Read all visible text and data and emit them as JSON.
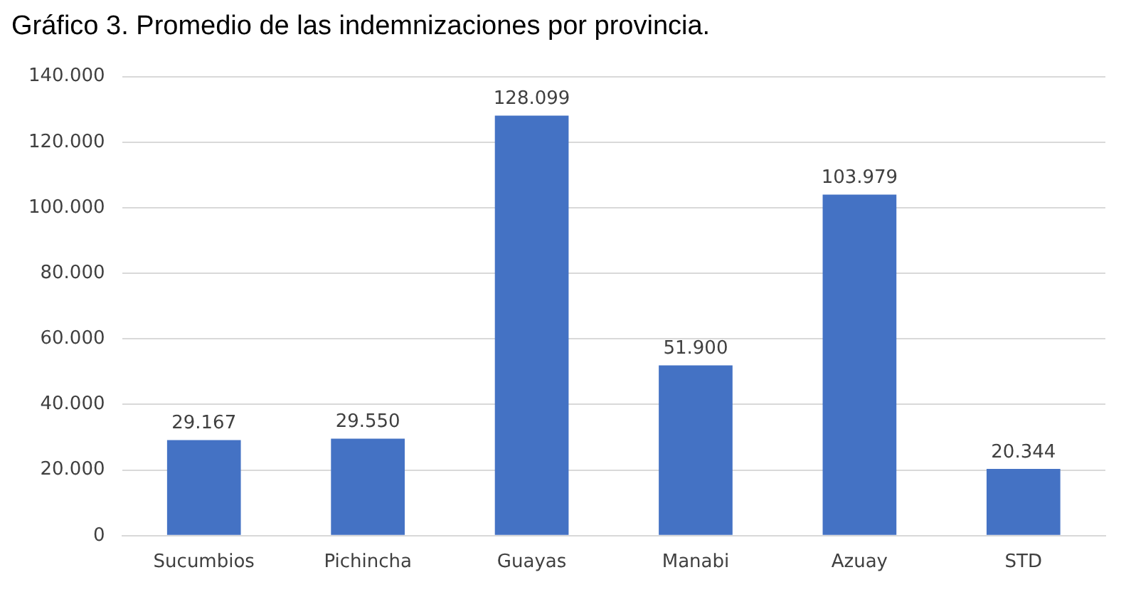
{
  "chart_data": {
    "type": "bar",
    "title": "Gráfico 3. Promedio de las indemnizaciones por provincia.",
    "categories": [
      "Sucumbios",
      "Pichincha",
      "Guayas",
      "Manabi",
      "Azuay",
      "STD"
    ],
    "values": [
      29167,
      29550,
      128099,
      51900,
      103979,
      20344
    ],
    "value_labels": [
      "29.167",
      "29.550",
      "128.099",
      "51.900",
      "103.979",
      "20.344"
    ],
    "color": "#4472c4",
    "ylim": [
      0,
      140000
    ],
    "yticks": [
      0,
      {
        "value": 20000,
        "label": "20.000"
      },
      {
        "value": 40000,
        "label": "40.000"
      },
      {
        "value": 60000,
        "label": "60.000"
      },
      {
        "value": 80000,
        "label": "80.000"
      },
      {
        "value": 100000,
        "label": "100.000"
      },
      {
        "value": 120000,
        "label": "120.000"
      },
      {
        "value": 140000,
        "label": "140.000"
      }
    ],
    "grid": "y"
  }
}
